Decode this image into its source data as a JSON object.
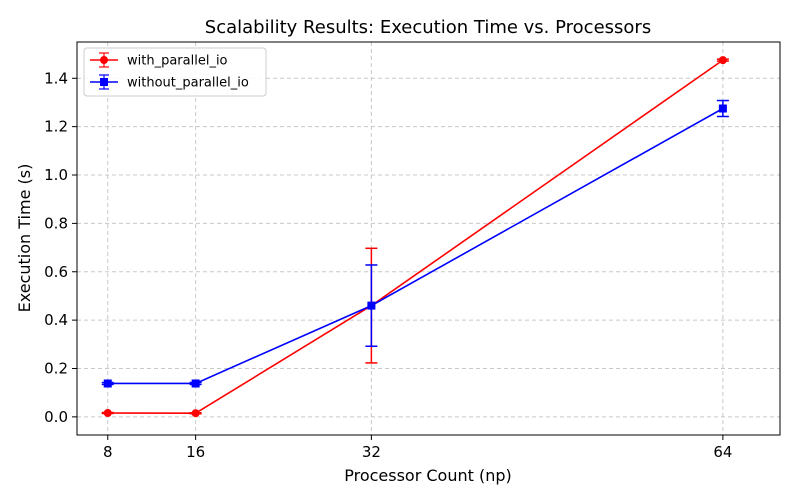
{
  "chart_data": {
    "type": "line",
    "title": "Scalability Results: Execution Time vs. Processors",
    "xlabel": "Processor Count (np)",
    "ylabel": "Execution Time (s)",
    "x": [
      8,
      16,
      32,
      64
    ],
    "xticks": [
      8,
      16,
      32,
      64
    ],
    "xtick_labels": [
      "8",
      "16",
      "32",
      "64"
    ],
    "yticks": [
      0.0,
      0.2,
      0.4,
      0.6,
      0.8,
      1.0,
      1.2,
      1.4
    ],
    "ytick_labels": [
      "0.0",
      "0.2",
      "0.4",
      "0.6",
      "0.8",
      "1.0",
      "1.2",
      "1.4"
    ],
    "xlim": [
      5.2,
      69.2
    ],
    "ylim": [
      -0.075,
      1.55
    ],
    "grid": true,
    "legend_position": "top-left",
    "series": [
      {
        "name": "with_parallel_io",
        "color": "#ff0000",
        "marker": "circle",
        "values": [
          0.016,
          0.015,
          0.46,
          1.475
        ],
        "errors": [
          0.002,
          0.002,
          0.237,
          0.004
        ]
      },
      {
        "name": "without_parallel_io",
        "color": "#0000ff",
        "marker": "square",
        "values": [
          0.138,
          0.138,
          0.46,
          1.275
        ],
        "errors": [
          0.004,
          0.004,
          0.168,
          0.033
        ]
      }
    ]
  }
}
